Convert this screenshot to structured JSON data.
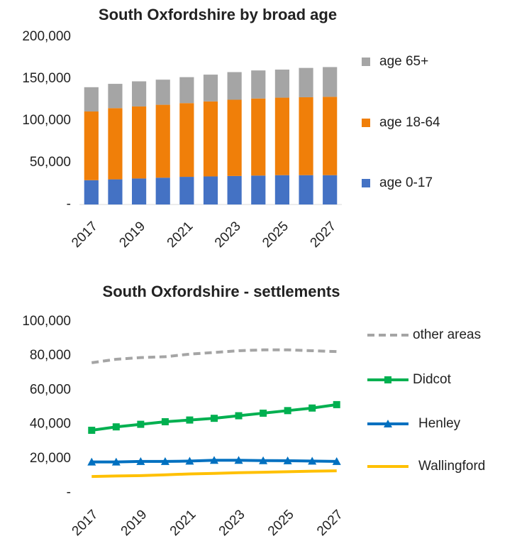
{
  "chart_data": [
    {
      "type": "stacked-bar",
      "title": "South Oxfordshire by broad age",
      "categories": [
        "2017",
        null,
        "2019",
        null,
        "2021",
        null,
        "2023",
        null,
        "2025",
        null,
        "2027"
      ],
      "ylim": [
        0,
        200000
      ],
      "yticks": [
        {
          "value": 0,
          "label": "-"
        },
        {
          "value": 50000,
          "label": "50,000"
        },
        {
          "value": 100000,
          "label": "100,000"
        },
        {
          "value": 150000,
          "label": "150,000"
        },
        {
          "value": 200000,
          "label": "200,000"
        }
      ],
      "legend": "right",
      "series": [
        {
          "name": "age 0-17",
          "color": "#4472c4",
          "values": [
            29000,
            30000,
            31000,
            32000,
            33000,
            33500,
            34000,
            34500,
            35000,
            35000,
            35000
          ]
        },
        {
          "name": "age 18-64",
          "color": "#f07f09",
          "values": [
            82000,
            85000,
            86000,
            87000,
            88000,
            89500,
            91000,
            92000,
            92500,
            93000,
            93500
          ]
        },
        {
          "name": "age 65+",
          "color": "#a5a5a5",
          "values": [
            29000,
            29000,
            30000,
            30000,
            31000,
            32000,
            33000,
            33500,
            33500,
            35000,
            35500
          ]
        }
      ]
    },
    {
      "type": "line",
      "title": "South Oxfordshire - settlements",
      "categories": [
        "2017",
        null,
        "2019",
        null,
        "2021",
        null,
        "2023",
        null,
        "2025",
        null,
        "2027"
      ],
      "ylim": [
        0,
        100000
      ],
      "yticks": [
        {
          "value": 0,
          "label": "-"
        },
        {
          "value": 20000,
          "label": "20,000"
        },
        {
          "value": 40000,
          "label": "40,000"
        },
        {
          "value": 60000,
          "label": "60,000"
        },
        {
          "value": 80000,
          "label": "80,000"
        },
        {
          "value": 100000,
          "label": "100,000"
        }
      ],
      "legend": "right",
      "series": [
        {
          "name": "other areas",
          "color": "#a5a5a5",
          "dashed": true,
          "values": [
            76000,
            78000,
            79000,
            79500,
            81000,
            82000,
            83000,
            83500,
            83500,
            83000,
            82500
          ]
        },
        {
          "name": "Didcot",
          "color": "#00b050",
          "marker": "square",
          "values": [
            36500,
            38500,
            40000,
            41500,
            42500,
            43500,
            45000,
            46500,
            48000,
            49500,
            51500
          ]
        },
        {
          "name": "Henley",
          "color": "#0070c0",
          "marker": "triangle",
          "values": [
            18000,
            18000,
            18300,
            18300,
            18500,
            19000,
            19000,
            18800,
            18700,
            18500,
            18300
          ]
        },
        {
          "name": "Wallingford",
          "color": "#ffc000",
          "values": [
            9500,
            9800,
            10000,
            10500,
            11000,
            11300,
            11700,
            12000,
            12300,
            12600,
            12800
          ]
        }
      ]
    }
  ]
}
